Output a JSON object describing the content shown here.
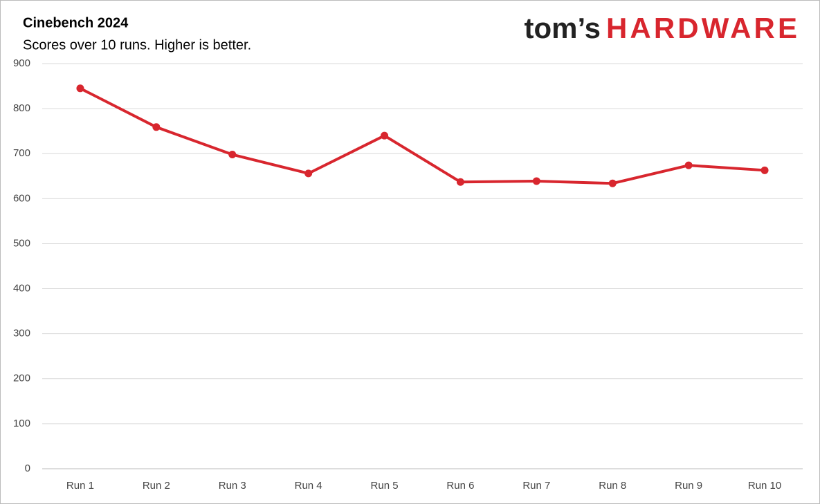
{
  "chart_data": {
    "type": "line",
    "title": "Cinebench 2024",
    "subtitle": "Scores over 10 runs. Higher is better.",
    "logo_prefix": "tom’s",
    "logo_name": "HARDWARE",
    "categories": [
      "Run 1",
      "Run 2",
      "Run 3",
      "Run 4",
      "Run 5",
      "Run 6",
      "Run 7",
      "Run 8",
      "Run 9",
      "Run 10"
    ],
    "series": [
      {
        "color": "#d8262e",
        "values": [
          845,
          759,
          698,
          656,
          740,
          637,
          639,
          634,
          674,
          663
        ]
      }
    ],
    "ylim": [
      0,
      900
    ],
    "yticks": [
      0,
      100,
      200,
      300,
      400,
      500,
      600,
      700,
      800,
      900
    ],
    "grid": true
  }
}
